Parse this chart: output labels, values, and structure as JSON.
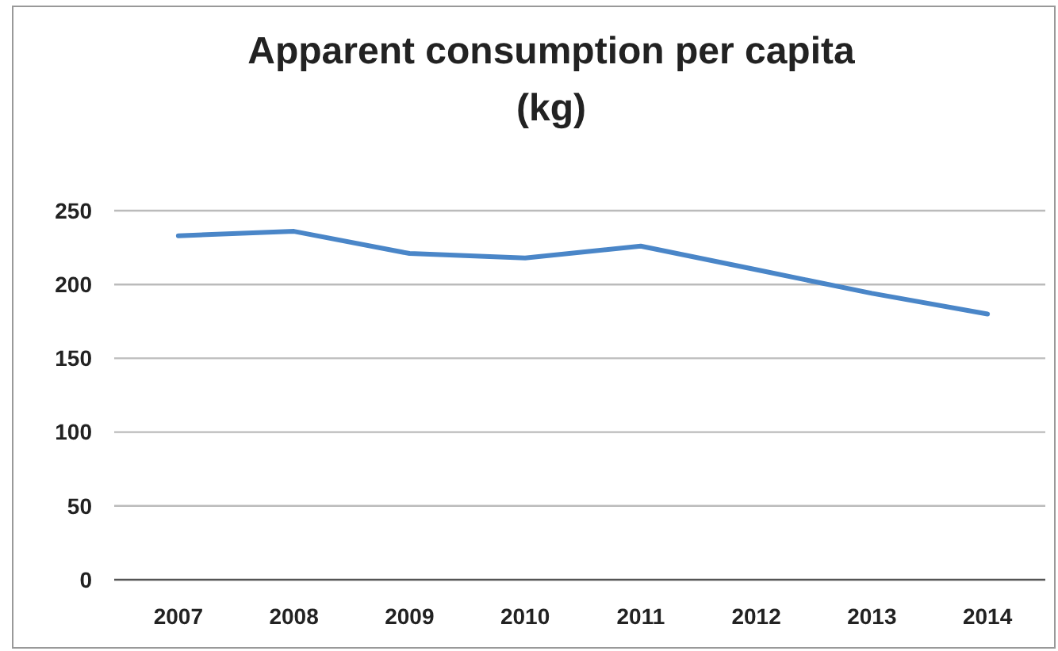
{
  "chart_data": {
    "type": "line",
    "title": "Apparent consumption per capita\n(kg)",
    "categories": [
      "2007",
      "2008",
      "2009",
      "2010",
      "2011",
      "2012",
      "2013",
      "2014"
    ],
    "values": [
      233,
      236,
      221,
      218,
      226,
      210,
      194,
      180
    ],
    "color": "#4a86c8",
    "ylim": [
      0,
      250
    ],
    "yticks": [
      0,
      50,
      100,
      150,
      200,
      250
    ],
    "grid": "y",
    "marker": "none"
  }
}
